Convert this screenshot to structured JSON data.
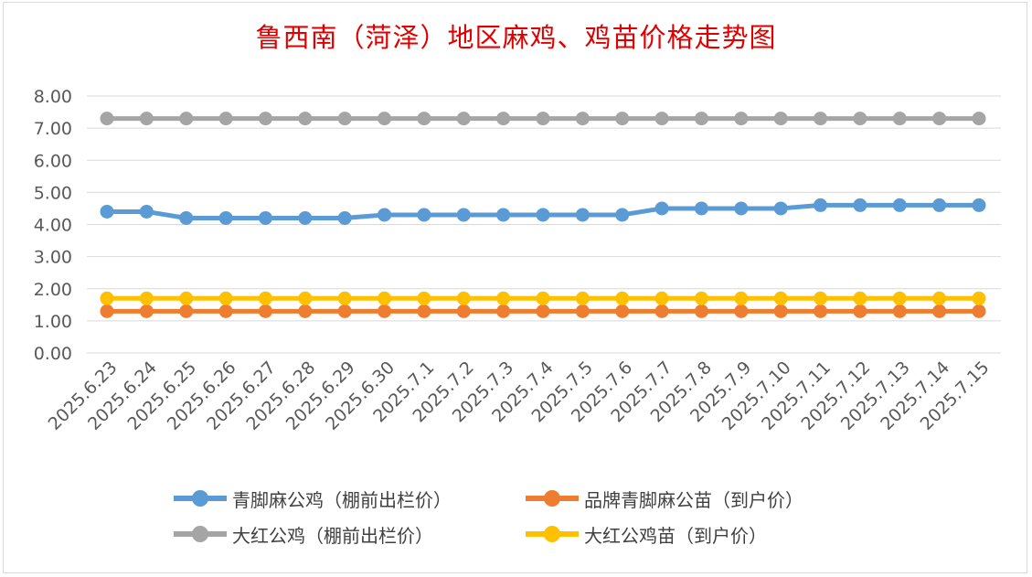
{
  "chart_data": {
    "type": "line",
    "title": "鲁西南（菏泽）地区麻鸡、鸡苗价格走势图",
    "xlabel": "",
    "ylabel": "",
    "ylim": [
      0,
      8
    ],
    "y_ticks": [
      "0.00",
      "1.00",
      "2.00",
      "3.00",
      "4.00",
      "5.00",
      "6.00",
      "7.00",
      "8.00"
    ],
    "grid": true,
    "legend_position": "bottom",
    "categories": [
      "2025.6.23",
      "2025.6.24",
      "2025.6.25",
      "2025.6.26",
      "2025.6.27",
      "2025.6.28",
      "2025.6.29",
      "2025.6.30",
      "2025.7.1",
      "2025.7.2",
      "2025.7.3",
      "2025.7.4",
      "2025.7.5",
      "2025.7.6",
      "2025.7.7",
      "2025.7.8",
      "2025.7.9",
      "2025.7.10",
      "2025.7.11",
      "2025.7.12",
      "2025.7.13",
      "2025.7.14",
      "2025.7.15"
    ],
    "series": [
      {
        "name": "青脚麻公鸡（棚前出栏价）",
        "color": "#5b9bd5",
        "values": [
          4.4,
          4.4,
          4.2,
          4.2,
          4.2,
          4.2,
          4.2,
          4.3,
          4.3,
          4.3,
          4.3,
          4.3,
          4.3,
          4.3,
          4.5,
          4.5,
          4.5,
          4.5,
          4.6,
          4.6,
          4.6,
          4.6,
          4.6
        ]
      },
      {
        "name": "品牌青脚麻公苗（到户价）",
        "color": "#ed7d31",
        "values": [
          1.3,
          1.3,
          1.3,
          1.3,
          1.3,
          1.3,
          1.3,
          1.3,
          1.3,
          1.3,
          1.3,
          1.3,
          1.3,
          1.3,
          1.3,
          1.3,
          1.3,
          1.3,
          1.3,
          1.3,
          1.3,
          1.3,
          1.3
        ]
      },
      {
        "name": "大红公鸡（棚前出栏价）",
        "color": "#a5a5a5",
        "values": [
          7.3,
          7.3,
          7.3,
          7.3,
          7.3,
          7.3,
          7.3,
          7.3,
          7.3,
          7.3,
          7.3,
          7.3,
          7.3,
          7.3,
          7.3,
          7.3,
          7.3,
          7.3,
          7.3,
          7.3,
          7.3,
          7.3,
          7.3
        ]
      },
      {
        "name": "大红公鸡苗（到户价）",
        "color": "#ffc000",
        "values": [
          1.7,
          1.7,
          1.7,
          1.7,
          1.7,
          1.7,
          1.7,
          1.7,
          1.7,
          1.7,
          1.7,
          1.7,
          1.7,
          1.7,
          1.7,
          1.7,
          1.7,
          1.7,
          1.7,
          1.7,
          1.7,
          1.7,
          1.7
        ]
      }
    ]
  }
}
